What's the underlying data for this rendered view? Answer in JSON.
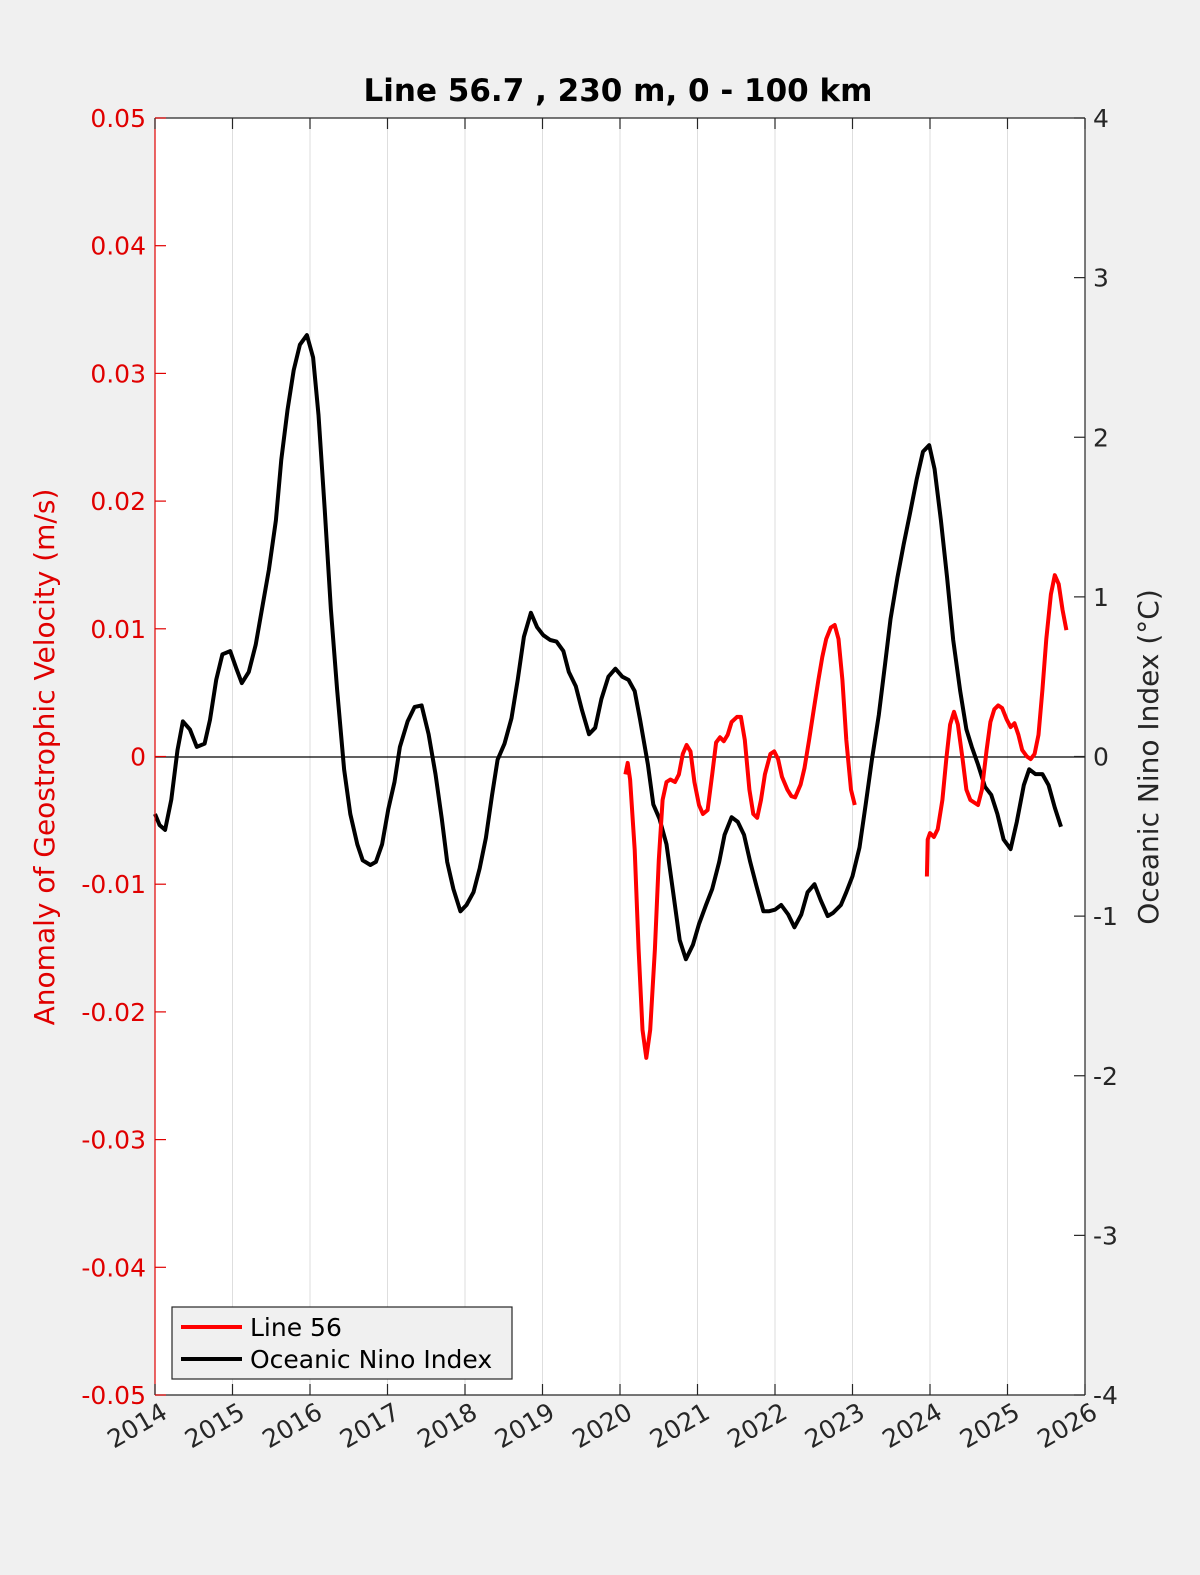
{
  "chart_data": {
    "type": "line",
    "title": "Line 56.7 , 230 m, 0 - 100 km",
    "xlabel": "",
    "ylabel_left": "Anomaly of Geostrophic Velocity (m/s)",
    "ylabel_right": "Oceanic Nino Index (°C)",
    "xlim": [
      2014,
      2026
    ],
    "ylim_left": [
      -0.05,
      0.05
    ],
    "ylim_right": [
      -4,
      4
    ],
    "x_ticks": [
      "2014",
      "2015",
      "2016",
      "2017",
      "2018",
      "2019",
      "2020",
      "2021",
      "2022",
      "2023",
      "2024",
      "2025",
      "2026"
    ],
    "y_ticks_left": [
      "0.05",
      "0.04",
      "0.03",
      "0.02",
      "0.01",
      "0",
      "-0.01",
      "-0.02",
      "-0.03",
      "-0.04",
      "-0.05"
    ],
    "y_ticks_right": [
      "4",
      "3",
      "2",
      "1",
      "0",
      "-1",
      "-2",
      "-3",
      "-4"
    ],
    "grid": "vertical",
    "legend_position": "bottom-left",
    "colors": {
      "line56": "#ff0000",
      "oni": "#000000",
      "left_axis": "#e00000",
      "right_axis": "#262626",
      "background": "#f0f0f0",
      "plot_bg": "#ffffff"
    },
    "series": [
      {
        "name": "Line 56",
        "axis": "left",
        "segments": [
          {
            "x": [
              2020.07,
              2020.1,
              2020.13,
              2020.19,
              2020.24,
              2020.29,
              2020.34,
              2020.39,
              2020.45,
              2020.5,
              2020.55,
              2020.6,
              2020.65,
              2020.71,
              2020.76,
              2020.81,
              2020.86,
              2020.91,
              2020.96,
              2021.02,
              2021.07,
              2021.13,
              2021.19,
              2021.24,
              2021.29,
              2021.34,
              2021.39,
              2021.44,
              2021.51,
              2021.56,
              2021.61,
              2021.67,
              2021.72,
              2021.77,
              2021.82,
              2021.87,
              2021.94,
              2021.99,
              2022.04,
              2022.09,
              2022.16,
              2022.21,
              2022.26,
              2022.33,
              2022.38,
              2022.44,
              2022.5,
              2022.56,
              2022.61,
              2022.66,
              2022.72,
              2022.77,
              2022.82,
              2022.87,
              2022.92,
              2022.98,
              2023.03
            ],
            "y": [
              -0.0014,
              -0.0005,
              -0.0018,
              -0.0073,
              -0.0151,
              -0.0214,
              -0.0236,
              -0.0214,
              -0.0151,
              -0.0081,
              -0.0034,
              -0.002,
              -0.0018,
              -0.002,
              -0.0014,
              0.0002,
              0.0009,
              0.0004,
              -0.002,
              -0.0038,
              -0.0045,
              -0.0042,
              -0.0014,
              0.0011,
              0.0015,
              0.0012,
              0.0017,
              0.0027,
              0.0031,
              0.0031,
              0.0013,
              -0.0026,
              -0.0045,
              -0.0048,
              -0.0034,
              -0.0014,
              0.0002,
              0.0004,
              -0.0002,
              -0.0016,
              -0.0026,
              -0.0031,
              -0.0032,
              -0.0022,
              -0.0009,
              0.0013,
              0.0037,
              0.006,
              0.0078,
              0.0092,
              0.0101,
              0.0103,
              0.0092,
              0.006,
              0.0013,
              -0.0026,
              -0.0038
            ]
          },
          {
            "x": [
              2023.96,
              2023.97,
              2024.0,
              2024.05,
              2024.1,
              2024.16,
              2024.21,
              2024.26,
              2024.31,
              2024.36,
              2024.42,
              2024.47,
              2024.52,
              2024.57,
              2024.62,
              2024.67,
              2024.73,
              2024.78,
              2024.83,
              2024.88,
              2024.93,
              2024.99,
              2025.04,
              2025.09,
              2025.14,
              2025.19,
              2025.25,
              2025.3,
              2025.35,
              2025.4,
              2025.45,
              2025.5,
              2025.56,
              2025.61,
              2025.66,
              2025.71,
              2025.76
            ],
            "y": [
              -0.0094,
              -0.0065,
              -0.006,
              -0.0063,
              -0.0057,
              -0.0034,
              -0.0002,
              0.0025,
              0.0035,
              0.0025,
              -0.0002,
              -0.0026,
              -0.0034,
              -0.0036,
              -0.0038,
              -0.0026,
              0.0005,
              0.0027,
              0.0037,
              0.004,
              0.0038,
              0.0029,
              0.0023,
              0.0026,
              0.0017,
              0.0005,
              0.0,
              -0.0002,
              0.0002,
              0.0017,
              0.0052,
              0.0092,
              0.0127,
              0.0142,
              0.0135,
              0.0115,
              0.0099
            ]
          }
        ]
      },
      {
        "name": "Oceanic Nino Index",
        "axis": "right",
        "segments": [
          {
            "x": [
              2014.0,
              2014.06,
              2014.13,
              2014.21,
              2014.29,
              2014.36,
              2014.45,
              2014.54,
              2014.64,
              2014.71,
              2014.79,
              2014.87,
              2014.97,
              2015.05,
              2015.12,
              2015.21,
              2015.3,
              2015.39,
              2015.47,
              2015.56,
              2015.63,
              2015.71,
              2015.79,
              2015.87,
              2015.96,
              2016.04,
              2016.11,
              2016.19,
              2016.27,
              2016.35,
              2016.44,
              2016.52,
              2016.61,
              2016.68,
              2016.78,
              2016.85,
              2016.93,
              2017.01,
              2017.09,
              2017.16,
              2017.26,
              2017.35,
              2017.44,
              2017.53,
              2017.62,
              2017.7,
              2017.77,
              2017.85,
              2017.94,
              2018.02,
              2018.11,
              2018.19,
              2018.27,
              2018.35,
              2018.42,
              2018.51,
              2018.6,
              2018.68,
              2018.76,
              2018.85,
              2018.93,
              2019.01,
              2019.1,
              2019.18,
              2019.27,
              2019.34,
              2019.43,
              2019.51,
              2019.6,
              2019.68,
              2019.76,
              2019.85,
              2019.94,
              2020.03,
              2020.11,
              2020.19,
              2020.26,
              2020.36,
              2020.43,
              2020.51,
              2020.6,
              2020.68,
              2020.77,
              2020.85,
              2020.94,
              2021.02,
              2021.11,
              2021.19,
              2021.28,
              2021.35,
              2021.44,
              2021.52,
              2021.6,
              2021.68,
              2021.76,
              2021.85,
              2021.92,
              2022.0,
              2022.08,
              2022.17,
              2022.25,
              2022.34,
              2022.42,
              2022.51,
              2022.59,
              2022.68,
              2022.75,
              2022.85,
              2022.92,
              2023.0,
              2023.09,
              2023.17,
              2023.25,
              2023.34,
              2023.42,
              2023.49,
              2023.58,
              2023.66,
              2023.74,
              2023.83,
              2023.91,
              2023.99,
              2024.06,
              2024.14,
              2024.22,
              2024.3,
              2024.39,
              2024.47,
              2024.54,
              2024.62,
              2024.71,
              2024.79,
              2024.87,
              2024.95,
              2025.04,
              2025.12,
              2025.21,
              2025.28,
              2025.36,
              2025.45,
              2025.53,
              2025.61,
              2025.69
            ],
            "y": [
              -0.36,
              -0.43,
              -0.46,
              -0.27,
              0.04,
              0.22,
              0.17,
              0.06,
              0.08,
              0.23,
              0.48,
              0.64,
              0.66,
              0.55,
              0.46,
              0.53,
              0.7,
              0.95,
              1.17,
              1.48,
              1.86,
              2.17,
              2.42,
              2.58,
              2.64,
              2.5,
              2.14,
              1.55,
              0.92,
              0.42,
              -0.08,
              -0.36,
              -0.55,
              -0.65,
              -0.68,
              -0.66,
              -0.55,
              -0.33,
              -0.16,
              0.06,
              0.22,
              0.31,
              0.32,
              0.14,
              -0.11,
              -0.39,
              -0.66,
              -0.83,
              -0.97,
              -0.93,
              -0.85,
              -0.7,
              -0.51,
              -0.24,
              -0.02,
              0.08,
              0.24,
              0.48,
              0.75,
              0.9,
              0.81,
              0.76,
              0.73,
              0.72,
              0.66,
              0.53,
              0.44,
              0.29,
              0.14,
              0.18,
              0.36,
              0.5,
              0.55,
              0.5,
              0.48,
              0.41,
              0.23,
              -0.05,
              -0.3,
              -0.39,
              -0.55,
              -0.83,
              -1.15,
              -1.27,
              -1.18,
              -1.05,
              -0.93,
              -0.83,
              -0.66,
              -0.49,
              -0.38,
              -0.41,
              -0.49,
              -0.66,
              -0.81,
              -0.97,
              -0.97,
              -0.96,
              -0.93,
              -0.99,
              -1.07,
              -0.99,
              -0.85,
              -0.8,
              -0.9,
              -1.0,
              -0.98,
              -0.93,
              -0.85,
              -0.75,
              -0.57,
              -0.3,
              -0.02,
              0.26,
              0.58,
              0.86,
              1.12,
              1.33,
              1.52,
              1.74,
              1.91,
              1.95,
              1.8,
              1.48,
              1.12,
              0.73,
              0.41,
              0.17,
              0.06,
              -0.05,
              -0.19,
              -0.24,
              -0.36,
              -0.52,
              -0.58,
              -0.41,
              -0.18,
              -0.08,
              -0.11,
              -0.11,
              -0.18,
              -0.32,
              -0.44
            ]
          }
        ]
      }
    ],
    "legend": [
      "Line 56",
      "Oceanic Nino Index"
    ]
  }
}
